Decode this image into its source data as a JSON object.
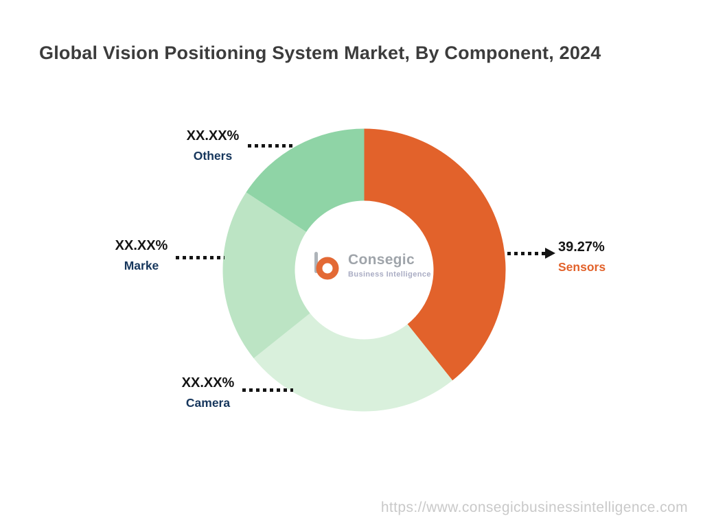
{
  "page": {
    "title": "Global Vision Positioning System Market, By Component, 2024",
    "footer_url": "https://www.consegicbusinessintelligence.com"
  },
  "logo": {
    "name": "Consegic",
    "subtitle": "Business Intelligence"
  },
  "chart_data": {
    "type": "pie",
    "subtype": "donut",
    "title": "Global Vision Positioning System Market, By Component, 2024",
    "start_angle_deg": 0,
    "direction": "clockwise",
    "inner_radius_ratio": 0.49,
    "legend_position": "callout-labels",
    "segments": [
      {
        "label": "Sensors",
        "value_pct": 39.27,
        "value_label": "39.27%",
        "color": "#E2622B",
        "label_color": "#E2622B"
      },
      {
        "label": "Camera",
        "value_pct": 25.0,
        "value_label": "XX.XX%",
        "color": "#D9F0DC",
        "label_color": "#16365C"
      },
      {
        "label": "Marke",
        "value_pct": 20.0,
        "value_label": "XX.XX%",
        "color": "#BCE4C4",
        "label_color": "#16365C"
      },
      {
        "label": "Others",
        "value_pct": 15.73,
        "value_label": "XX.XX%",
        "color": "#8FD4A6",
        "label_color": "#16365C"
      }
    ]
  }
}
